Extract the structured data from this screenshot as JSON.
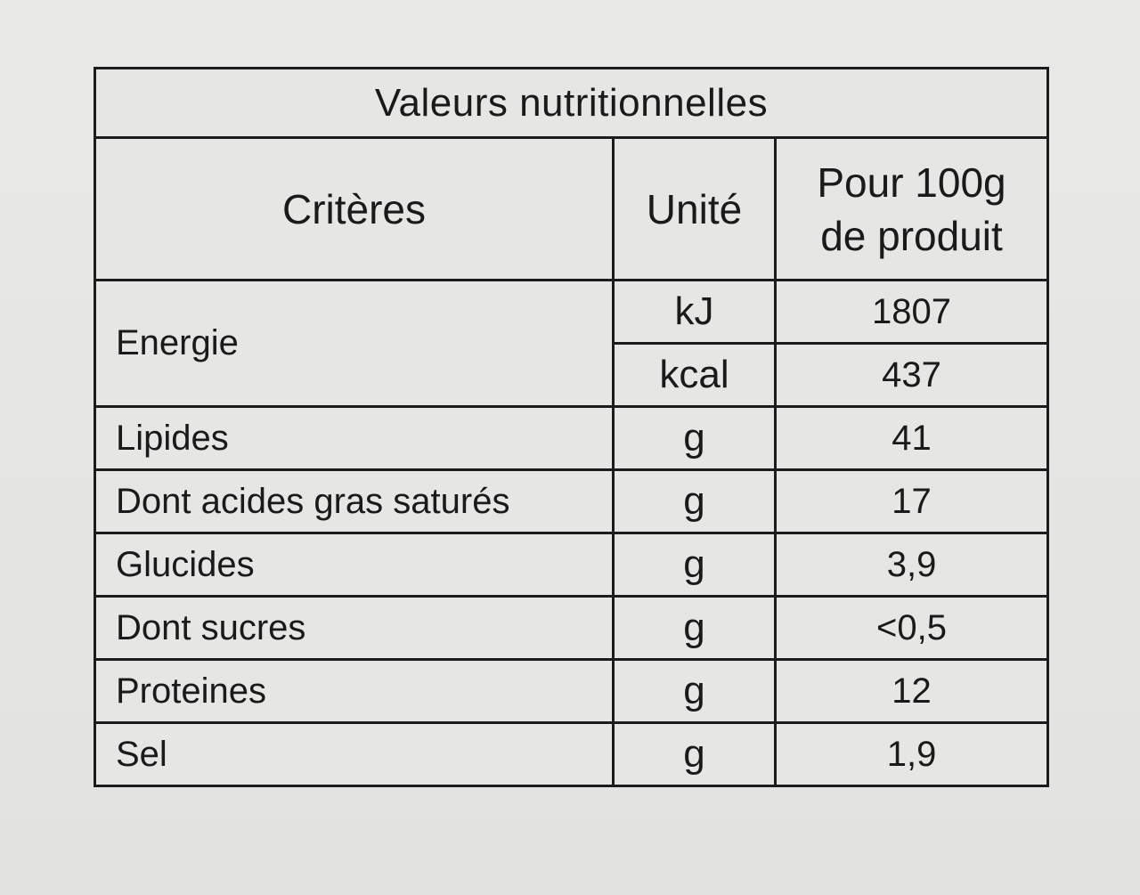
{
  "table": {
    "title": "Valeurs nutritionnelles",
    "headers": {
      "criteria": "Critères",
      "unit": "Unité",
      "value_line1": "Pour 100g",
      "value_line2": "de produit"
    },
    "energy": {
      "label": "Energie",
      "rows": [
        {
          "unit": "kJ",
          "value": "1807"
        },
        {
          "unit": "kcal",
          "value": "437"
        }
      ]
    },
    "rows": [
      {
        "criteria": "Lipides",
        "unit": "g",
        "value": "41"
      },
      {
        "criteria": "Dont acides gras saturés",
        "unit": "g",
        "value": "17"
      },
      {
        "criteria": "Glucides",
        "unit": "g",
        "value": "3,9"
      },
      {
        "criteria": "Dont sucres",
        "unit": "g",
        "value": "<0,5"
      },
      {
        "criteria": "Proteines",
        "unit": "g",
        "value": "12"
      },
      {
        "criteria": "Sel",
        "unit": "g",
        "value": "1,9"
      }
    ]
  }
}
